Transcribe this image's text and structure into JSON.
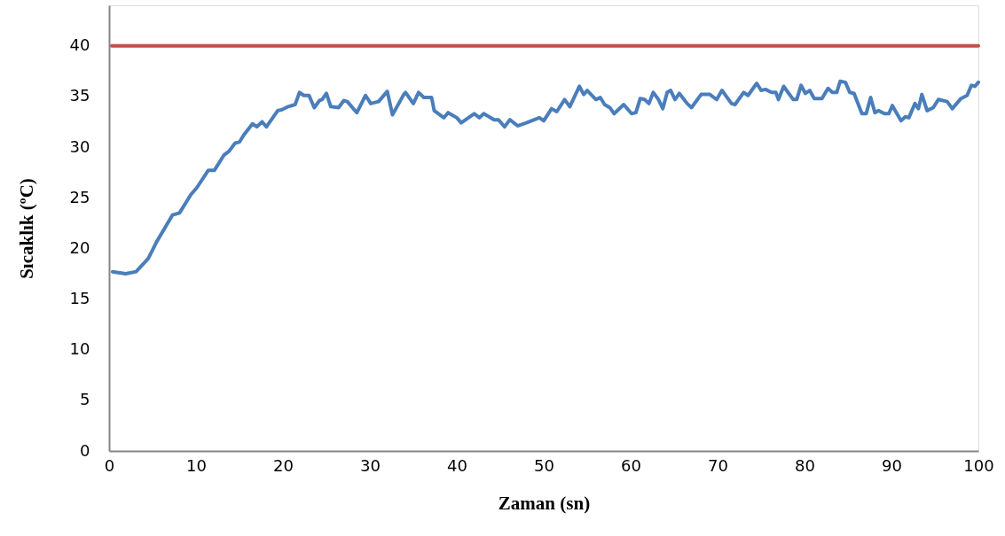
{
  "chart_data": {
    "type": "line",
    "xlabel": "Zaman (sn)",
    "ylabel": "Sıcaklık  (ºC)",
    "xlim": [
      0,
      100
    ],
    "xticks": [
      0,
      10,
      20,
      30,
      40,
      50,
      60,
      70,
      80,
      90,
      100
    ],
    "ylim": [
      0,
      44
    ],
    "yticks": [
      0,
      5,
      10,
      15,
      20,
      25,
      30,
      35,
      40
    ],
    "grid": false,
    "line_style": "solid",
    "series": [
      {
        "color": "#4a7ebb",
        "x": [
          0.4,
          1.9,
          3.1,
          4.5,
          5.5,
          7.3,
          8.1,
          9.4,
          10.1,
          11.4,
          12.1,
          13.2,
          13.8,
          14.5,
          15.0,
          15.5,
          16.5,
          17.0,
          17.6,
          18.1,
          19.4,
          19.9,
          20.6,
          21.4,
          21.9,
          22.4,
          23.0,
          23.6,
          24.2,
          24.5,
          25.0,
          25.5,
          26.4,
          27.0,
          27.4,
          28.5,
          29.5,
          30.1,
          31.0,
          32.0,
          32.6,
          33.9,
          34.1,
          35.0,
          35.6,
          36.2,
          37.1,
          37.4,
          38.5,
          39.0,
          40.0,
          40.5,
          42.0,
          42.6,
          43.1,
          44.3,
          44.8,
          45.5,
          46.1,
          47.0,
          48.0,
          49.5,
          50.0,
          50.9,
          51.5,
          52.4,
          53.0,
          54.1,
          54.6,
          55.0,
          56.0,
          56.5,
          57.0,
          57.6,
          58.1,
          59.2,
          60.1,
          60.6,
          61.1,
          61.6,
          62.1,
          62.6,
          63.2,
          63.7,
          64.2,
          64.6,
          65.1,
          65.6,
          66.5,
          67.0,
          68.1,
          69.1,
          69.9,
          70.5,
          71.6,
          72.0,
          73.0,
          73.5,
          74.5,
          75.0,
          75.5,
          76.2,
          76.7,
          77.0,
          77.6,
          78.7,
          79.1,
          79.6,
          80.1,
          80.6,
          81.1,
          82.0,
          82.7,
          83.2,
          83.7,
          84.1,
          84.7,
          85.2,
          85.7,
          86.6,
          87.1,
          87.6,
          88.1,
          88.5,
          89.2,
          89.7,
          90.1,
          91.1,
          91.6,
          92.0,
          92.7,
          93.1,
          93.5,
          94.1,
          94.8,
          95.4,
          96.4,
          97.0,
          98.0,
          98.7,
          99.2,
          99.6,
          100.0
        ],
        "values": [
          17.7,
          17.5,
          17.7,
          19.0,
          20.7,
          23.3,
          23.5,
          25.3,
          26.0,
          27.7,
          27.7,
          29.2,
          29.6,
          30.4,
          30.5,
          31.2,
          32.3,
          32.0,
          32.5,
          32.0,
          33.6,
          33.7,
          34.0,
          34.2,
          35.4,
          35.1,
          35.1,
          33.9,
          34.6,
          34.7,
          35.3,
          34.0,
          33.9,
          34.6,
          34.5,
          33.4,
          35.1,
          34.3,
          34.5,
          35.5,
          33.2,
          35.2,
          35.4,
          34.3,
          35.4,
          34.9,
          34.9,
          33.6,
          32.9,
          33.4,
          32.9,
          32.4,
          33.3,
          32.9,
          33.3,
          32.7,
          32.7,
          32.0,
          32.7,
          32.1,
          32.4,
          32.9,
          32.6,
          33.8,
          33.5,
          34.7,
          34.0,
          36.0,
          35.2,
          35.6,
          34.7,
          34.9,
          34.2,
          33.9,
          33.3,
          34.2,
          33.3,
          33.4,
          34.8,
          34.7,
          34.3,
          35.4,
          34.7,
          33.8,
          35.4,
          35.6,
          34.7,
          35.3,
          34.3,
          33.9,
          35.2,
          35.2,
          34.7,
          35.6,
          34.3,
          34.2,
          35.4,
          35.1,
          36.3,
          35.6,
          35.7,
          35.4,
          35.4,
          34.7,
          36.0,
          34.7,
          34.7,
          36.1,
          35.3,
          35.6,
          34.8,
          34.8,
          35.8,
          35.4,
          35.4,
          36.5,
          36.4,
          35.4,
          35.3,
          33.3,
          33.3,
          34.9,
          33.4,
          33.6,
          33.3,
          33.3,
          34.1,
          32.6,
          33.0,
          32.9,
          34.3,
          33.8,
          35.2,
          33.6,
          33.9,
          34.7,
          34.5,
          33.8,
          34.8,
          35.1,
          36.1,
          36.0,
          36.4
        ]
      },
      {
        "color": "#c0504d",
        "x": [
          0.3,
          100
        ],
        "values": [
          40,
          40
        ]
      }
    ]
  }
}
